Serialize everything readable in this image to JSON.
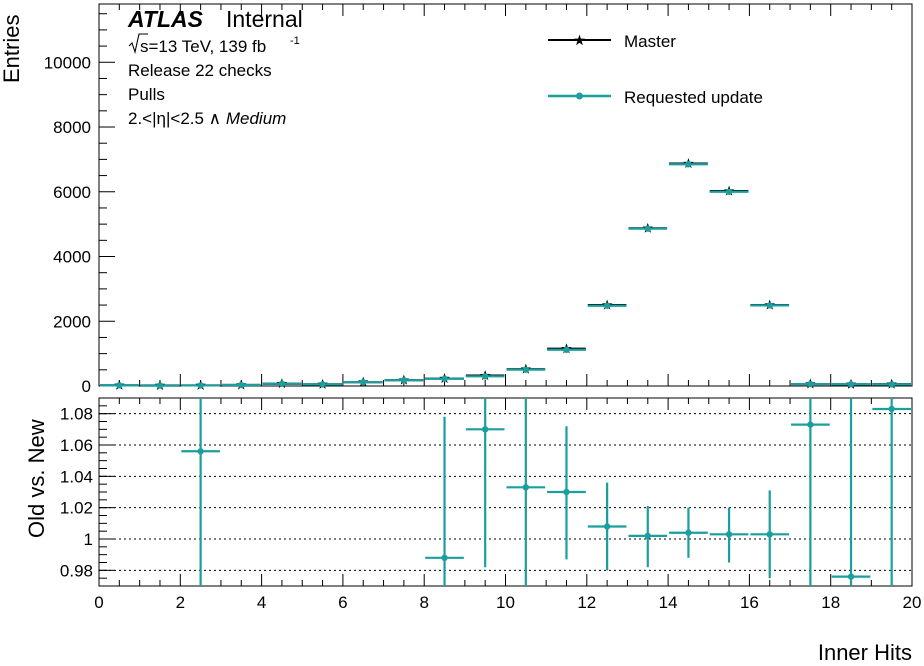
{
  "colors": {
    "master": "#000000",
    "update": "#1a9e9e",
    "axis": "#000000",
    "grid": "#000000"
  },
  "legend": {
    "placement": "top-right",
    "master_label": "Master",
    "update_label": "Requested update"
  },
  "annotations": {
    "atlas": "ATLAS",
    "internal": "Internal",
    "energy_prefix": "s=13 TeV, 139 fb",
    "lumi_exp": "-1",
    "line2": "Release 22 checks",
    "line3": "Pulls",
    "line4_prefix": "2.<|η|<2.5 ∧ ",
    "line4_wp": "Medium"
  },
  "chart_data": [
    {
      "type": "line",
      "panel": "main",
      "xlabel": "",
      "ylabel": "Entries",
      "xlim": [
        0,
        20
      ],
      "ylim": [
        0,
        11800
      ],
      "yticks": [
        0,
        2000,
        4000,
        6000,
        8000,
        10000
      ],
      "ytick_labels": [
        "0",
        "2000",
        "4000",
        "6000",
        "8000",
        "10000"
      ],
      "grid": false,
      "bin_width": 1,
      "x": [
        0.5,
        1.5,
        2.5,
        3.5,
        4.5,
        5.5,
        6.5,
        7.5,
        8.5,
        9.5,
        10.5,
        11.5,
        12.5,
        13.5,
        14.5,
        15.5,
        16.5,
        17.5,
        18.5,
        19.5
      ],
      "series": [
        {
          "name": "Master",
          "marker": "star",
          "values": [
            20,
            15,
            18,
            30,
            70,
            50,
            120,
            180,
            230,
            320,
            520,
            1150,
            2500,
            4870,
            6870,
            6020,
            2500,
            60,
            50,
            55
          ]
        },
        {
          "name": "Requested update",
          "marker": "circle",
          "values": [
            20,
            15,
            17,
            30,
            70,
            50,
            120,
            180,
            225,
            300,
            505,
            1120,
            2480,
            4860,
            6850,
            6000,
            2490,
            60,
            55,
            50
          ]
        }
      ]
    },
    {
      "type": "scatter",
      "panel": "ratio",
      "xlabel": "Inner Hits",
      "ylabel": "Old vs. New",
      "xlim": [
        0,
        20
      ],
      "ylim": [
        0.97,
        1.09
      ],
      "yticks": [
        0.98,
        1.0,
        1.02,
        1.04,
        1.06,
        1.08
      ],
      "ytick_labels": [
        "0.98",
        "1",
        "1.02",
        "1.04",
        "1.06",
        "1.08"
      ],
      "xticks": [
        0,
        2,
        4,
        6,
        8,
        10,
        12,
        14,
        16,
        18,
        20
      ],
      "xtick_labels": [
        "0",
        "2",
        "4",
        "6",
        "8",
        "10",
        "12",
        "14",
        "16",
        "18",
        "20"
      ],
      "grid": true,
      "bin_width": 1,
      "series": [
        {
          "name": "Old vs. New",
          "points": [
            {
              "x": 2.5,
              "y": 1.056,
              "err_lo": 0.2,
              "err_hi": 0.2
            },
            {
              "x": 8.5,
              "y": 0.988,
              "err_lo": 0.05,
              "err_hi": 0.09
            },
            {
              "x": 9.5,
              "y": 1.07,
              "err_lo": 0.088,
              "err_hi": 0.04
            },
            {
              "x": 10.5,
              "y": 1.033,
              "err_lo": 0.1,
              "err_hi": 0.1
            },
            {
              "x": 11.5,
              "y": 1.03,
              "err_lo": 0.043,
              "err_hi": 0.042
            },
            {
              "x": 12.5,
              "y": 1.008,
              "err_lo": 0.028,
              "err_hi": 0.028
            },
            {
              "x": 13.5,
              "y": 1.002,
              "err_lo": 0.02,
              "err_hi": 0.019
            },
            {
              "x": 14.5,
              "y": 1.004,
              "err_lo": 0.016,
              "err_hi": 0.016
            },
            {
              "x": 15.5,
              "y": 1.003,
              "err_lo": 0.018,
              "err_hi": 0.017
            },
            {
              "x": 16.5,
              "y": 1.003,
              "err_lo": 0.028,
              "err_hi": 0.028
            },
            {
              "x": 17.5,
              "y": 1.073,
              "err_lo": 0.2,
              "err_hi": 0.2
            },
            {
              "x": 18.5,
              "y": 0.976,
              "err_lo": 0.2,
              "err_hi": 0.2
            },
            {
              "x": 19.5,
              "y": 1.083,
              "err_lo": 0.2,
              "err_hi": 0.2
            }
          ]
        }
      ]
    }
  ]
}
